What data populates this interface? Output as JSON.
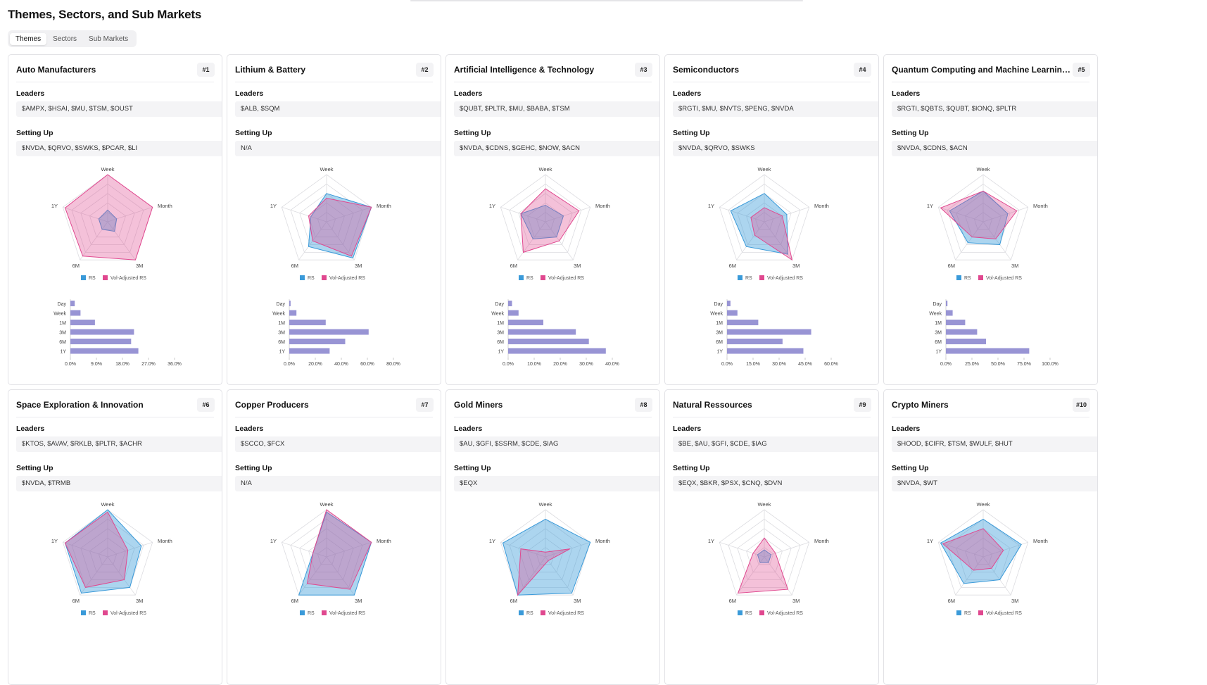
{
  "page": {
    "title": "Themes, Sectors, and Sub Markets"
  },
  "tabs": [
    "Themes",
    "Sectors",
    "Sub Markets"
  ],
  "labels": {
    "leaders": "Leaders",
    "setting_up": "Setting Up"
  },
  "radar_axes": [
    "Week",
    "Month",
    "3M",
    "6M",
    "1Y"
  ],
  "legend": [
    "RS",
    "Vol-Adjusted RS"
  ],
  "bar_categories": [
    "Day",
    "Week",
    "1M",
    "3M",
    "6M",
    "1Y"
  ],
  "colors": {
    "rs": "#3a9ad9",
    "vol": "#e0488f",
    "bar": "#9894d4"
  },
  "cards": [
    {
      "rank": "#1",
      "name": "Auto Manufacturers",
      "leaders": "$AMPX, $HSAI, $MU, $TSM, $OUST",
      "setting_up": "$NVDA, $QRVO, $SWKS, $PCAR, $LI",
      "chart_data": {
        "type": "radar",
        "axes": [
          "Week",
          "Month",
          "3M",
          "6M",
          "1Y"
        ],
        "max": 1,
        "series": [
          {
            "name": "RS",
            "values": [
              0.25,
              0.2,
              0.25,
              0.2,
              0.2
            ]
          },
          {
            "name": "Vol-Adjusted RS",
            "values": [
              1.0,
              1.0,
              1.0,
              0.9,
              0.95
            ]
          }
        ]
      },
      "bar_chart": {
        "type": "bar",
        "orientation": "horizontal",
        "categories": [
          "Day",
          "Week",
          "1M",
          "3M",
          "6M",
          "1Y"
        ],
        "values": [
          1.5,
          3.5,
          8.5,
          22,
          21,
          23.5
        ],
        "xlim": [
          0,
          36
        ],
        "xticks": [
          "0.0%",
          "9.0%",
          "18.0%",
          "27.0%",
          "36.0%"
        ]
      }
    },
    {
      "rank": "#2",
      "name": "Lithium & Battery",
      "leaders": "$ALB, $SQM",
      "setting_up": "N/A",
      "chart_data": {
        "type": "radar",
        "axes": [
          "Week",
          "Month",
          "3M",
          "6M",
          "1Y"
        ],
        "max": 1,
        "series": [
          {
            "name": "RS",
            "values": [
              0.6,
              1.0,
              0.95,
              0.65,
              0.35
            ]
          },
          {
            "name": "Vol-Adjusted RS",
            "values": [
              0.5,
              1.0,
              0.9,
              0.5,
              0.4
            ]
          }
        ]
      },
      "bar_chart": {
        "type": "bar",
        "orientation": "horizontal",
        "categories": [
          "Day",
          "Week",
          "1M",
          "3M",
          "6M",
          "1Y"
        ],
        "values": [
          1,
          5.5,
          28,
          61,
          43,
          31
        ],
        "xlim": [
          0,
          80
        ],
        "xticks": [
          "0.0%",
          "20.0%",
          "40.0%",
          "60.0%",
          "80.0%"
        ]
      }
    },
    {
      "rank": "#3",
      "name": "Artificial Intelligence & Technology",
      "leaders": "$QUBT, $PLTR, $MU, $BABA, $TSM",
      "setting_up": "$NVDA, $CDNS, $GEHC, $NOW, $ACN",
      "chart_data": {
        "type": "radar",
        "axes": [
          "Week",
          "Month",
          "3M",
          "6M",
          "1Y"
        ],
        "max": 1,
        "series": [
          {
            "name": "RS",
            "values": [
              0.35,
              0.4,
              0.4,
              0.45,
              0.55
            ]
          },
          {
            "name": "Vol-Adjusted RS",
            "values": [
              0.7,
              0.75,
              0.5,
              0.8,
              0.55
            ]
          }
        ]
      },
      "bar_chart": {
        "type": "bar",
        "orientation": "horizontal",
        "categories": [
          "Day",
          "Week",
          "1M",
          "3M",
          "6M",
          "1Y"
        ],
        "values": [
          1.5,
          4,
          13.5,
          26,
          31,
          37.5
        ],
        "xlim": [
          0,
          40
        ],
        "xticks": [
          "0.0%",
          "10.0%",
          "20.0%",
          "30.0%",
          "40.0%"
        ]
      }
    },
    {
      "rank": "#4",
      "name": "Semiconductors",
      "leaders": "$RGTI, $MU, $NVTS, $PENG, $NVDA",
      "setting_up": "$NVDA, $QRVO, $SWKS",
      "chart_data": {
        "type": "radar",
        "axes": [
          "Week",
          "Month",
          "3M",
          "6M",
          "1Y"
        ],
        "max": 1,
        "series": [
          {
            "name": "RS",
            "values": [
              0.6,
              0.5,
              0.85,
              0.65,
              0.75
            ]
          },
          {
            "name": "Vol-Adjusted RS",
            "values": [
              0.3,
              0.4,
              1.0,
              0.35,
              0.3
            ]
          }
        ]
      },
      "bar_chart": {
        "type": "bar",
        "orientation": "horizontal",
        "categories": [
          "Day",
          "Week",
          "1M",
          "3M",
          "6M",
          "1Y"
        ],
        "values": [
          2,
          6,
          18,
          48.5,
          32,
          44
        ],
        "xlim": [
          0,
          60
        ],
        "xticks": [
          "0.0%",
          "15.0%",
          "30.0%",
          "45.0%",
          "60.0%"
        ]
      }
    },
    {
      "rank": "#5",
      "name": "Quantum Computing and Machine Learning ...",
      "leaders": "$RGTI, $QBTS, $QUBT, $IONQ, $PLTR",
      "setting_up": "$NVDA, $CDNS, $ACN",
      "chart_data": {
        "type": "radar",
        "axes": [
          "Week",
          "Month",
          "3M",
          "6M",
          "1Y"
        ],
        "max": 1,
        "series": [
          {
            "name": "RS",
            "values": [
              0.65,
              0.55,
              0.6,
              0.55,
              0.75
            ]
          },
          {
            "name": "Vol-Adjusted RS",
            "values": [
              0.65,
              0.75,
              0.45,
              0.4,
              0.95
            ]
          }
        ]
      },
      "bar_chart": {
        "type": "bar",
        "orientation": "horizontal",
        "categories": [
          "Day",
          "Week",
          "1M",
          "3M",
          "6M",
          "1Y"
        ],
        "values": [
          1.5,
          6.5,
          18.5,
          30,
          38.5,
          80
        ],
        "xlim": [
          0,
          100
        ],
        "xticks": [
          "0.0%",
          "25.0%",
          "50.0%",
          "75.0%",
          "100.0%"
        ]
      }
    },
    {
      "rank": "#6",
      "name": "Space Exploration & Innovation",
      "leaders": "$KTOS, $AVAV, $RKLB, $PLTR, $ACHR",
      "setting_up": "$NVDA, $TRMB",
      "chart_data": {
        "type": "radar",
        "axes": [
          "Week",
          "Month",
          "3M",
          "6M",
          "1Y"
        ],
        "max": 1,
        "series": [
          {
            "name": "RS",
            "values": [
              1.0,
              0.75,
              0.8,
              0.95,
              0.95
            ]
          },
          {
            "name": "Vol-Adjusted RS",
            "values": [
              0.95,
              0.45,
              0.6,
              0.8,
              0.95
            ]
          }
        ]
      }
    },
    {
      "rank": "#7",
      "name": "Copper Producers",
      "leaders": "$SCCO, $FCX",
      "setting_up": "N/A",
      "chart_data": {
        "type": "radar",
        "axes": [
          "Week",
          "Month",
          "3M",
          "6M",
          "1Y"
        ],
        "max": 1,
        "series": [
          {
            "name": "RS",
            "values": [
              0.95,
              1.0,
              1.0,
              1.0,
              0.3
            ]
          },
          {
            "name": "Vol-Adjusted RS",
            "values": [
              1.0,
              1.0,
              0.85,
              0.7,
              0.3
            ]
          }
        ]
      }
    },
    {
      "rank": "#8",
      "name": "Gold Miners",
      "leaders": "$AU, $GFI, $SSRM, $CDE, $IAG",
      "setting_up": "$EQX",
      "chart_data": {
        "type": "radar",
        "axes": [
          "Week",
          "Month",
          "3M",
          "6M",
          "1Y"
        ],
        "max": 1,
        "series": [
          {
            "name": "RS",
            "values": [
              0.8,
              1.0,
              0.95,
              1.0,
              0.95
            ]
          },
          {
            "name": "Vol-Adjusted RS",
            "values": [
              0.1,
              0.55,
              0.1,
              1.0,
              0.55
            ]
          }
        ]
      }
    },
    {
      "rank": "#9",
      "name": "Natural Ressources",
      "leaders": "$BE, $AU, $GFI, $CDE, $IAG",
      "setting_up": "$EQX, $BKR, $PSX, $CNQ, $DVN",
      "chart_data": {
        "type": "radar",
        "axes": [
          "Week",
          "Month",
          "3M",
          "6M",
          "1Y"
        ],
        "max": 1,
        "series": [
          {
            "name": "RS",
            "values": [
              0.15,
              0.15,
              0.15,
              0.15,
              0.15
            ]
          },
          {
            "name": "Vol-Adjusted RS",
            "values": [
              0.4,
              0.25,
              0.85,
              0.95,
              0.25
            ]
          }
        ]
      }
    },
    {
      "rank": "#10",
      "name": "Crypto Miners",
      "leaders": "$HOOD, $CIFR, $TSM, $WULF, $HUT",
      "setting_up": "$NVDA, $WT",
      "chart_data": {
        "type": "radar",
        "axes": [
          "Week",
          "Month",
          "3M",
          "6M",
          "1Y"
        ],
        "max": 1,
        "series": [
          {
            "name": "RS",
            "values": [
              0.8,
              0.85,
              0.6,
              0.7,
              0.95
            ]
          },
          {
            "name": "Vol-Adjusted RS",
            "values": [
              0.6,
              0.45,
              0.3,
              0.35,
              0.9
            ]
          }
        ]
      }
    }
  ]
}
